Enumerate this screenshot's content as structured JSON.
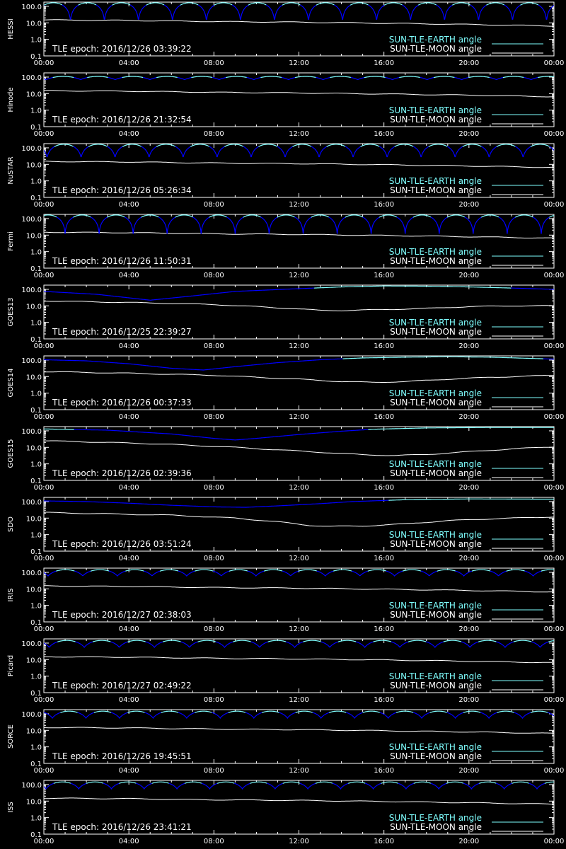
{
  "chart_data": {
    "type": "line",
    "x_ticks": [
      "00:00",
      "04:00",
      "08:00",
      "12:00",
      "16:00",
      "20:00",
      "00:00"
    ],
    "y_ticks": [
      "100.0",
      "10.0",
      "1.0",
      "0.1"
    ],
    "log_y": true,
    "ylim": [
      0.1,
      180
    ],
    "xlim_hours": [
      0,
      24
    ],
    "colors": {
      "earth": "#7fffff",
      "earth_shadow": "#0000ff",
      "moon": "#ffffff",
      "axes": "#ffffff",
      "background": "#000000"
    },
    "legend": {
      "earth_label": "SUN-TLE-EARTH angle",
      "moon_label": "SUN-TLE-MOON angle",
      "placement": "bottom-right"
    },
    "panels": [
      {
        "name": "HESSI",
        "epoch_text": "TLE epoch: 2016/12/26 03:39:22",
        "earth": {
          "kind": "orbit",
          "period_h": 1.6,
          "min": 12,
          "max": 165,
          "phase_h": -0.35,
          "shadow_below": 120
        },
        "moon": {
          "x": [
            0,
            4,
            8,
            12,
            16,
            20,
            24
          ],
          "y": [
            15,
            14,
            12,
            11,
            9.5,
            8,
            6.5
          ]
        }
      },
      {
        "name": "Hinode",
        "epoch_text": "TLE epoch: 2016/12/26 21:32:54",
        "earth": {
          "kind": "orbit",
          "period_h": 1.63,
          "min": 70,
          "max": 110,
          "phase_h": 0.1,
          "shadow_below": 95
        },
        "moon": {
          "x": [
            0,
            4,
            8,
            12,
            16,
            20,
            24
          ],
          "y": [
            15,
            14,
            12,
            11,
            9.5,
            8,
            6.5
          ]
        }
      },
      {
        "name": "NuSTAR",
        "epoch_text": "TLE epoch: 2016/12/26 05:26:34",
        "earth": {
          "kind": "orbit",
          "period_h": 1.6,
          "min": 25,
          "max": 165,
          "phase_h": 0.15,
          "shadow_below": 120
        },
        "moon": {
          "x": [
            0,
            4,
            8,
            12,
            16,
            20,
            24
          ],
          "y": [
            15,
            14,
            12,
            11,
            9.5,
            8,
            6.5
          ]
        }
      },
      {
        "name": "Fermi",
        "epoch_text": "TLE epoch: 2016/12/26 11:50:31",
        "earth": {
          "kind": "orbit",
          "period_h": 1.6,
          "min": 12,
          "max": 165,
          "phase_h": -0.6,
          "shadow_below": 120
        },
        "moon": {
          "x": [
            0,
            4,
            8,
            12,
            16,
            20,
            24
          ],
          "y": [
            15,
            14,
            12,
            11,
            9.5,
            8,
            6.5
          ]
        }
      },
      {
        "name": "GOES13",
        "epoch_text": "TLE epoch: 2016/12/25 22:39:27",
        "earth": {
          "kind": "geo",
          "x": [
            0,
            2.5,
            5,
            7,
            9,
            12,
            14,
            16,
            18,
            20,
            22,
            24
          ],
          "y": [
            75,
            50,
            22,
            40,
            75,
            110,
            140,
            160,
            155,
            140,
            120,
            100
          ],
          "shadow_below": 120
        },
        "moon": {
          "x": [
            0,
            4,
            8,
            10,
            12,
            13,
            14,
            16,
            18,
            20,
            22,
            24
          ],
          "y": [
            20,
            16,
            12,
            9,
            6.5,
            5.3,
            5.2,
            6,
            7,
            9,
            10,
            10
          ]
        }
      },
      {
        "name": "GOES14",
        "epoch_text": "TLE epoch: 2016/12/26 00:37:33",
        "earth": {
          "kind": "geo",
          "x": [
            0,
            2,
            4,
            6,
            7.5,
            9,
            11,
            13,
            15,
            17,
            19,
            21,
            24
          ],
          "y": [
            105,
            90,
            60,
            32,
            25,
            40,
            70,
            105,
            135,
            150,
            160,
            150,
            115
          ],
          "shadow_below": 120
        },
        "moon": {
          "x": [
            0,
            4,
            8,
            12,
            14,
            15.5,
            17,
            19,
            21,
            24
          ],
          "y": [
            20,
            16,
            12,
            7,
            5,
            4.5,
            5,
            7,
            9,
            12
          ]
        }
      },
      {
        "name": "GOES15",
        "epoch_text": "TLE epoch: 2016/12/26 02:39:36",
        "earth": {
          "kind": "geo",
          "x": [
            0,
            3,
            6,
            8,
            9,
            10,
            12,
            14,
            15.5,
            18,
            21,
            24
          ],
          "y": [
            130,
            110,
            65,
            35,
            28,
            35,
            60,
            95,
            125,
            150,
            160,
            160
          ],
          "shadow_below": 120
        },
        "moon": {
          "x": [
            0,
            3,
            6,
            9,
            12,
            15,
            16.5,
            18,
            20,
            22,
            24
          ],
          "y": [
            25,
            20,
            15,
            10,
            6,
            3.6,
            3.2,
            3.7,
            5.5,
            8,
            11
          ]
        }
      },
      {
        "name": "SDO",
        "epoch_text": "TLE epoch: 2016/12/26 03:51:24",
        "earth": {
          "kind": "geo",
          "x": [
            0,
            2,
            4,
            6,
            8,
            9.5,
            11,
            13,
            14.5,
            17,
            20,
            24
          ],
          "y": [
            110,
            100,
            80,
            60,
            48,
            45,
            55,
            75,
            100,
            130,
            145,
            140
          ],
          "shadow_below": 120
        },
        "moon": {
          "x": [
            0,
            3,
            6,
            9,
            11,
            12.5,
            13.5,
            15,
            17,
            19,
            21,
            24
          ],
          "y": [
            22,
            18,
            15,
            10,
            6,
            3.6,
            3.2,
            3.3,
            4.5,
            7,
            9,
            12
          ]
        }
      },
      {
        "name": "IRIS",
        "epoch_text": "TLE epoch: 2016/12/27 02:38:03",
        "earth": {
          "kind": "orbit",
          "period_h": 1.63,
          "min": 60,
          "max": 145,
          "phase_h": 0.2,
          "shadow_below": 120
        },
        "moon": {
          "x": [
            0,
            4,
            8,
            12,
            16,
            20,
            24
          ],
          "y": [
            15,
            14,
            12,
            11,
            9.5,
            8,
            6.5
          ]
        }
      },
      {
        "name": "Picard",
        "epoch_text": "TLE epoch: 2016/12/27 02:49:22",
        "earth": {
          "kind": "orbit",
          "period_h": 1.65,
          "min": 55,
          "max": 145,
          "phase_h": 0.25,
          "shadow_below": 120
        },
        "moon": {
          "x": [
            0,
            4,
            8,
            12,
            16,
            20,
            24
          ],
          "y": [
            15,
            14,
            12,
            11,
            9.5,
            8,
            6.5
          ]
        }
      },
      {
        "name": "SORCE",
        "epoch_text": "TLE epoch: 2016/12/26 19:45:51",
        "earth": {
          "kind": "orbit",
          "period_h": 1.58,
          "min": 55,
          "max": 145,
          "phase_h": 0.4,
          "shadow_below": 120
        },
        "moon": {
          "x": [
            0,
            4,
            8,
            12,
            16,
            20,
            24
          ],
          "y": [
            15,
            14,
            12,
            11,
            9.5,
            8,
            6.5
          ]
        }
      },
      {
        "name": "ISS",
        "epoch_text": "TLE epoch: 2016/12/26 23:41:21",
        "earth": {
          "kind": "orbit",
          "period_h": 1.54,
          "min": 55,
          "max": 145,
          "phase_h": 0.1,
          "shadow_below": 120
        },
        "moon": {
          "x": [
            0,
            4,
            8,
            12,
            16,
            20,
            24
          ],
          "y": [
            15,
            14,
            12,
            11,
            9.5,
            8,
            6.5
          ]
        }
      }
    ]
  }
}
